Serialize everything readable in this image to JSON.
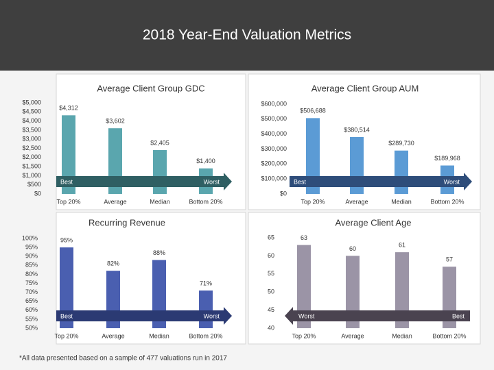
{
  "title": "2018 Year-End Valuation Metrics",
  "footnote": "*All data presented based on a sample of 477 valuations run in 2017",
  "chart_data": [
    {
      "type": "bar",
      "title": "Average Client Group GDC",
      "categories": [
        "Top 20%",
        "Average",
        "Median",
        "Bottom 20%"
      ],
      "values": [
        4312,
        3602,
        2405,
        1400
      ],
      "value_labels": [
        "$4,312",
        "$3,602",
        "$2,405",
        "$1,400"
      ],
      "color": "#5aa6ae",
      "ylim": [
        0,
        5000
      ],
      "yticks": [
        {
          "value": 0,
          "label": "$0"
        },
        {
          "value": 500,
          "label": "$500"
        },
        {
          "value": 1000,
          "label": "$1,000"
        },
        {
          "value": 1500,
          "label": "$1,500"
        },
        {
          "value": 2000,
          "label": "$2,000"
        },
        {
          "value": 2500,
          "label": "$2,500"
        },
        {
          "value": 3000,
          "label": "$3,000"
        },
        {
          "value": 3500,
          "label": "$3,500"
        },
        {
          "value": 4000,
          "label": "$4,000"
        },
        {
          "value": 4500,
          "label": "$4,500"
        },
        {
          "value": 5000,
          "label": "$5,000"
        }
      ],
      "arrow_labels": [
        "Best",
        "Worst"
      ],
      "arrow_direction": "right",
      "arrow_color": "#2f5f63"
    },
    {
      "type": "bar",
      "title": "Average Client Group AUM",
      "categories": [
        "Top 20%",
        "Average",
        "Median",
        "Bottom 20%"
      ],
      "values": [
        506688,
        380514,
        289730,
        189968
      ],
      "value_labels": [
        "$506,688",
        "$380,514",
        "$289,730",
        "$189,968"
      ],
      "color": "#5b9bd5",
      "ylim": [
        0,
        600000
      ],
      "yticks": [
        {
          "value": 0,
          "label": "$0"
        },
        {
          "value": 100000,
          "label": "$100,000"
        },
        {
          "value": 200000,
          "label": "$200,000"
        },
        {
          "value": 300000,
          "label": "$300,000"
        },
        {
          "value": 400000,
          "label": "$400,000"
        },
        {
          "value": 500000,
          "label": "$500,000"
        },
        {
          "value": 600000,
          "label": "$600,000"
        }
      ],
      "arrow_labels": [
        "Best",
        "Worst"
      ],
      "arrow_direction": "right",
      "arrow_color": "#2e4d7a"
    },
    {
      "type": "bar",
      "title": "Recurring Revenue",
      "categories": [
        "Top 20%",
        "Average",
        "Median",
        "Bottom 20%"
      ],
      "values": [
        95,
        82,
        88,
        71
      ],
      "value_labels": [
        "95%",
        "82%",
        "88%",
        "71%"
      ],
      "color": "#4a5fb0",
      "ylim": [
        50,
        100
      ],
      "yticks": [
        {
          "value": 50,
          "label": "50%"
        },
        {
          "value": 55,
          "label": "55%"
        },
        {
          "value": 60,
          "label": "60%"
        },
        {
          "value": 65,
          "label": "65%"
        },
        {
          "value": 70,
          "label": "70%"
        },
        {
          "value": 75,
          "label": "75%"
        },
        {
          "value": 80,
          "label": "80%"
        },
        {
          "value": 85,
          "label": "85%"
        },
        {
          "value": 90,
          "label": "90%"
        },
        {
          "value": 95,
          "label": "95%"
        },
        {
          "value": 100,
          "label": "100%"
        }
      ],
      "arrow_labels": [
        "Best",
        "Worst"
      ],
      "arrow_direction": "right",
      "arrow_color": "#2b3a73"
    },
    {
      "type": "bar",
      "title": "Average Client Age",
      "categories": [
        "Top 20%",
        "Average",
        "Median",
        "Bottom 20%"
      ],
      "values": [
        63,
        60,
        61,
        57
      ],
      "color": "#9b94a6",
      "ylim": [
        40,
        65
      ],
      "yticks": [
        40,
        45,
        50,
        55,
        60,
        65
      ],
      "arrow_labels": [
        "Worst",
        "Best"
      ],
      "arrow_direction": "left",
      "arrow_color": "#4a4350"
    }
  ]
}
